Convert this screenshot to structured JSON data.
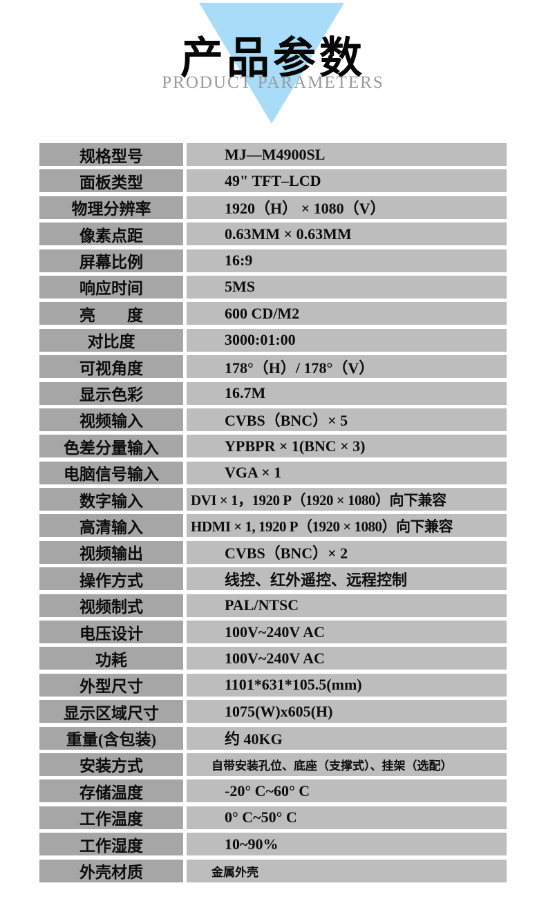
{
  "header": {
    "title": "产品参数",
    "subtitle": "PRODUCT PARAMETERS",
    "triangle_color": "#a8dcf8",
    "title_color": "#050505",
    "subtitle_color": "#9a9a9a"
  },
  "table": {
    "label_bg": "#a6a6a6",
    "value_bg": "#bdbdbd",
    "rows": [
      {
        "label": "规格型号",
        "value": "MJ—M4900SL"
      },
      {
        "label": "面板类型",
        "value": "49\" TFT–LCD"
      },
      {
        "label": "物理分辨率",
        "value": "1920（H） × 1080（V）"
      },
      {
        "label": "像素点距",
        "value": "0.63MM × 0.63MM"
      },
      {
        "label": "屏幕比例",
        "value": "16:9"
      },
      {
        "label": "响应时间",
        "value": "5MS"
      },
      {
        "label": "亮　　度",
        "value": "600 CD/M2"
      },
      {
        "label": "对比度",
        "value": "3000:01:00"
      },
      {
        "label": "可视角度",
        "value": "178°（H）/ 178°（V）"
      },
      {
        "label": "显示色彩",
        "value": "16.7M"
      },
      {
        "label": "视频输入",
        "value": "CVBS（BNC）× 5"
      },
      {
        "label": "色差分量输入",
        "value": "YPBPR × 1(BNC × 3)"
      },
      {
        "label": "电脑信号输入",
        "value": "VGA × 1"
      },
      {
        "label": "数字输入",
        "value": "DVI × 1，1920 P（1920 × 1080）向下兼容",
        "tight": true
      },
      {
        "label": "高清输入",
        "value": "HDMI × 1, 1920 P（1920 × 1080）向下兼容",
        "tight": true
      },
      {
        "label": "视频输出",
        "value": "CVBS（BNC）× 2"
      },
      {
        "label": "操作方式",
        "value": "线控、红外遥控、远程控制"
      },
      {
        "label": "视频制式",
        "value": "PAL/NTSC"
      },
      {
        "label": "电压设计",
        "value": "100V~240V AC"
      },
      {
        "label": "功耗",
        "value": "100V~240V AC"
      },
      {
        "label": "外型尺寸",
        "value": "1101*631*105.5(mm)"
      },
      {
        "label": "显示区域尺寸",
        "value": "1075(W)x605(H)"
      },
      {
        "label": "重量(含包装)",
        "value": "约 40KG"
      },
      {
        "label": "安装方式",
        "value": "自带安装孔位、底座（支撑式）、挂架（选配）",
        "small": true
      },
      {
        "label": "存储温度",
        "value": "-20° C~60° C"
      },
      {
        "label": "工作温度",
        "value": "0° C~50° C"
      },
      {
        "label": "工作湿度",
        "value": "10~90%"
      },
      {
        "label": "外壳材质",
        "value": "金属外壳",
        "small": true
      }
    ]
  }
}
